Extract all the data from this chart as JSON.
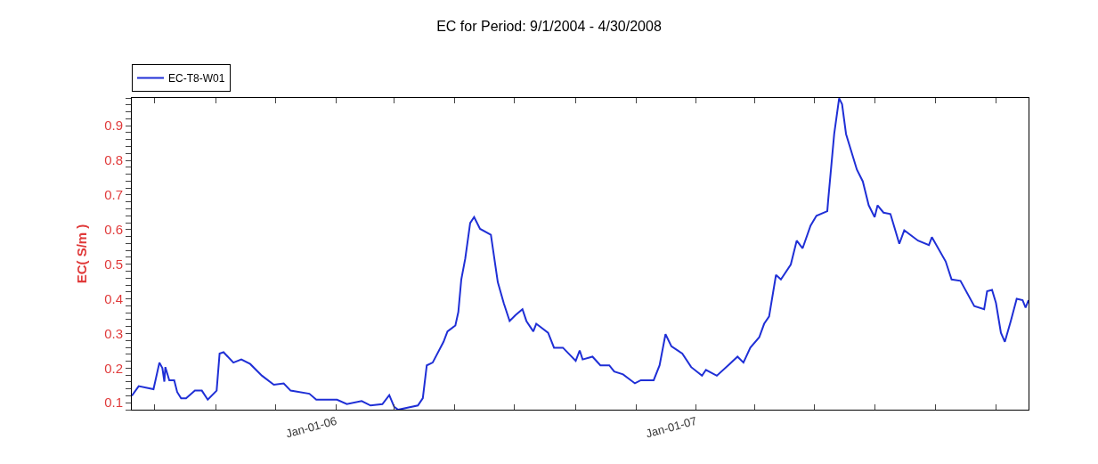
{
  "chart_data": {
    "type": "line",
    "title": "EC for Period: 9/1/2004 - 4/30/2008",
    "ylabel": "EC( S/m )",
    "x": [
      "2005-06-08",
      "2005-06-15",
      "2005-06-30",
      "2005-07-06",
      "2005-07-09",
      "2005-07-11",
      "2005-07-12",
      "2005-07-16",
      "2005-07-21",
      "2005-07-24",
      "2005-07-28",
      "2005-08-02",
      "2005-08-11",
      "2005-08-18",
      "2005-08-24",
      "2005-09-02",
      "2005-09-05",
      "2005-09-09",
      "2005-09-19",
      "2005-09-27",
      "2005-10-06",
      "2005-10-18",
      "2005-10-30",
      "2005-11-09",
      "2005-11-16",
      "2005-12-05",
      "2005-12-12",
      "2006-01-02",
      "2006-01-12",
      "2006-01-27",
      "2006-02-05",
      "2006-02-17",
      "2006-02-24",
      "2006-03-01",
      "2006-03-05",
      "2006-03-25",
      "2006-03-30",
      "2006-04-03",
      "2006-04-09",
      "2006-04-20",
      "2006-04-24",
      "2006-05-02",
      "2006-05-05",
      "2006-05-08",
      "2006-05-12",
      "2006-05-17",
      "2006-05-21",
      "2006-05-27",
      "2006-06-07",
      "2006-06-14",
      "2006-06-20",
      "2006-06-26",
      "2006-07-02",
      "2006-07-09",
      "2006-07-13",
      "2006-07-20",
      "2006-07-23",
      "2006-08-04",
      "2006-08-10",
      "2006-08-19",
      "2006-09-01",
      "2006-09-05",
      "2006-09-08",
      "2006-09-18",
      "2006-09-26",
      "2006-10-05",
      "2006-10-10",
      "2006-10-19",
      "2006-10-31",
      "2006-11-06",
      "2006-11-19",
      "2006-11-25",
      "2006-12-01",
      "2006-12-07",
      "2006-12-18",
      "2006-12-27",
      "2007-01-07",
      "2007-01-11",
      "2007-01-22",
      "2007-02-04",
      "2007-02-12",
      "2007-02-18",
      "2007-02-25",
      "2007-03-06",
      "2007-03-11",
      "2007-03-16",
      "2007-03-23",
      "2007-03-28",
      "2007-04-07",
      "2007-04-13",
      "2007-04-19",
      "2007-04-27",
      "2007-05-03",
      "2007-05-14",
      "2007-05-15",
      "2007-05-21",
      "2007-05-26",
      "2007-05-29",
      "2007-06-02",
      "2007-06-13",
      "2007-06-19",
      "2007-06-25",
      "2007-07-01",
      "2007-07-04",
      "2007-07-10",
      "2007-07-17",
      "2007-07-26",
      "2007-07-31",
      "2007-08-14",
      "2007-08-25",
      "2007-08-28",
      "2007-09-11",
      "2007-09-17",
      "2007-09-26",
      "2007-10-10",
      "2007-10-20",
      "2007-10-23",
      "2007-10-28",
      "2007-11-01",
      "2007-11-06",
      "2007-11-10",
      "2007-11-16",
      "2007-11-22",
      "2007-11-28",
      "2007-12-01",
      "2007-12-04"
    ],
    "series": [
      {
        "name": "EC-T8-W01",
        "color": "#1f2fd6",
        "values": [
          0.12,
          0.148,
          0.139,
          0.216,
          0.2,
          0.161,
          0.203,
          0.165,
          0.165,
          0.131,
          0.113,
          0.113,
          0.135,
          0.135,
          0.109,
          0.135,
          0.242,
          0.246,
          0.216,
          0.225,
          0.212,
          0.178,
          0.152,
          0.156,
          0.135,
          0.126,
          0.109,
          0.109,
          0.096,
          0.105,
          0.092,
          0.096,
          0.122,
          0.088,
          0.08,
          0.092,
          0.113,
          0.208,
          0.216,
          0.276,
          0.306,
          0.323,
          0.362,
          0.456,
          0.516,
          0.619,
          0.636,
          0.602,
          0.585,
          0.448,
          0.388,
          0.336,
          0.353,
          0.37,
          0.336,
          0.306,
          0.328,
          0.302,
          0.259,
          0.259,
          0.221,
          0.251,
          0.225,
          0.233,
          0.208,
          0.208,
          0.19,
          0.182,
          0.156,
          0.165,
          0.165,
          0.208,
          0.298,
          0.263,
          0.242,
          0.203,
          0.178,
          0.195,
          0.178,
          0.212,
          0.233,
          0.216,
          0.259,
          0.289,
          0.328,
          0.349,
          0.469,
          0.456,
          0.499,
          0.568,
          0.546,
          0.611,
          0.64,
          0.653,
          0.688,
          0.876,
          0.979,
          0.962,
          0.876,
          0.773,
          0.739,
          0.67,
          0.636,
          0.67,
          0.649,
          0.645,
          0.559,
          0.598,
          0.568,
          0.555,
          0.578,
          0.508,
          0.456,
          0.452,
          0.379,
          0.37,
          0.422,
          0.426,
          0.388,
          0.302,
          0.276,
          0.336,
          0.4,
          0.396,
          0.375,
          0.396
        ]
      }
    ],
    "xlim": [
      "2005-06-08",
      "2007-12-04"
    ],
    "xticks": [
      {
        "value": "2005-07-01",
        "label": null
      },
      {
        "value": "2005-09-01",
        "label": null
      },
      {
        "value": "2005-11-01",
        "label": null
      },
      {
        "value": "2006-01-01",
        "label": "Jan-01-06"
      },
      {
        "value": "2006-03-01",
        "label": null
      },
      {
        "value": "2006-05-01",
        "label": null
      },
      {
        "value": "2006-07-01",
        "label": null
      },
      {
        "value": "2006-09-01",
        "label": null
      },
      {
        "value": "2006-11-01",
        "label": null
      },
      {
        "value": "2007-01-01",
        "label": "Jan-01-07"
      },
      {
        "value": "2007-03-01",
        "label": null
      },
      {
        "value": "2007-05-01",
        "label": null
      },
      {
        "value": "2007-07-01",
        "label": null
      },
      {
        "value": "2007-09-01",
        "label": null
      },
      {
        "value": "2007-11-01",
        "label": null
      }
    ],
    "ylim": [
      0.08,
      0.98
    ],
    "yticks": [
      0.1,
      0.2,
      0.3,
      0.4,
      0.5,
      0.6,
      0.7,
      0.8,
      0.9,
      {
        "value": 0.08,
        "label": null
      },
      {
        "value": 0.12,
        "label": null
      },
      {
        "value": 0.14,
        "label": null
      },
      {
        "value": 0.16,
        "label": null
      },
      {
        "value": 0.18,
        "label": null
      },
      {
        "value": 0.22,
        "label": null
      },
      {
        "value": 0.24,
        "label": null
      },
      {
        "value": 0.26,
        "label": null
      },
      {
        "value": 0.28,
        "label": null
      },
      {
        "value": 0.32,
        "label": null
      },
      {
        "value": 0.34,
        "label": null
      },
      {
        "value": 0.36,
        "label": null
      },
      {
        "value": 0.38,
        "label": null
      },
      {
        "value": 0.42,
        "label": null
      },
      {
        "value": 0.44,
        "label": null
      },
      {
        "value": 0.46,
        "label": null
      },
      {
        "value": 0.48,
        "label": null
      },
      {
        "value": 0.52,
        "label": null
      },
      {
        "value": 0.54,
        "label": null
      },
      {
        "value": 0.56,
        "label": null
      },
      {
        "value": 0.58,
        "label": null
      },
      {
        "value": 0.62,
        "label": null
      },
      {
        "value": 0.64,
        "label": null
      },
      {
        "value": 0.66,
        "label": null
      },
      {
        "value": 0.68,
        "label": null
      },
      {
        "value": 0.72,
        "label": null
      },
      {
        "value": 0.74,
        "label": null
      },
      {
        "value": 0.76,
        "label": null
      },
      {
        "value": 0.78,
        "label": null
      },
      {
        "value": 0.82,
        "label": null
      },
      {
        "value": 0.84,
        "label": null
      },
      {
        "value": 0.86,
        "label": null
      },
      {
        "value": 0.88,
        "label": null
      },
      {
        "value": 0.92,
        "label": null
      },
      {
        "value": 0.94,
        "label": null
      },
      {
        "value": 0.96,
        "label": null
      },
      {
        "value": 0.98,
        "label": null
      }
    ],
    "legend": "top left",
    "marker": "none",
    "line_style": "solid"
  }
}
